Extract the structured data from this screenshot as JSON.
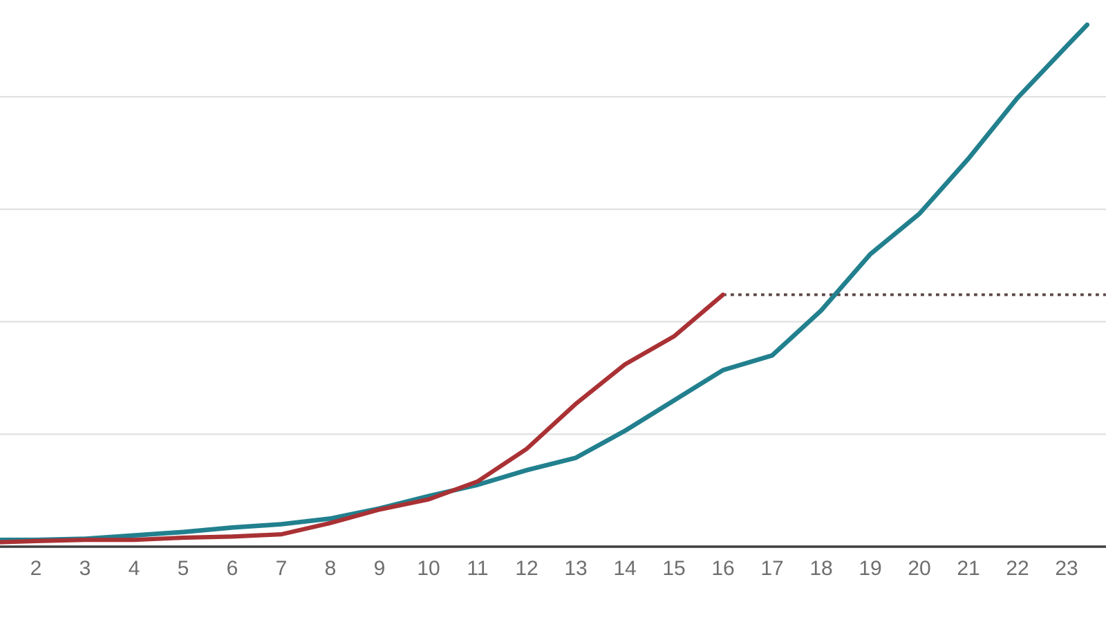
{
  "chart": {
    "background_color": "#ffffff",
    "axis_line_color": "#3f3f3f",
    "gridline_color": "#e1e1e1",
    "tick_label_color": "#6e6e6e",
    "series_teal_color": "#22808e",
    "series_red_color": "#a93134",
    "reference_line_color": "#5a4646"
  },
  "chart_data": {
    "type": "line",
    "title": "",
    "xlabel": "",
    "ylabel": "",
    "legend": "none",
    "x_tick_labels": [
      "2",
      "3",
      "4",
      "5",
      "6",
      "7",
      "8",
      "9",
      "10",
      "11",
      "12",
      "13",
      "14",
      "15",
      "16",
      "17",
      "18",
      "19",
      "20",
      "21",
      "22",
      "23"
    ],
    "y_tick_labels_visible": false,
    "gridline_values": [
      1,
      2,
      3,
      4
    ],
    "ylim": [
      0,
      4.8
    ],
    "xlim_visible": [
      1.27,
      23.8
    ],
    "y_units_note": "unlabeled y-axis; values expressed in gridline units",
    "series": [
      {
        "name": "series_teal",
        "color": "#22808e",
        "x_visible_start": 1.27,
        "start_value": 0.06,
        "x": [
          2,
          3,
          4,
          5,
          6,
          7,
          8,
          9,
          10,
          11,
          12,
          13,
          14,
          15,
          16,
          17,
          18,
          19,
          20,
          21,
          22,
          23
        ],
        "values": [
          0.06,
          0.07,
          0.1,
          0.13,
          0.17,
          0.2,
          0.25,
          0.34,
          0.45,
          0.55,
          0.68,
          0.79,
          1.03,
          1.3,
          1.57,
          1.7,
          2.1,
          2.6,
          2.96,
          3.45,
          3.99,
          4.45
        ],
        "x_visible_end": 23.42,
        "end_value": 4.64
      },
      {
        "name": "series_red",
        "color": "#a93134",
        "x_visible_start": 1.27,
        "start_value": 0.04,
        "x": [
          2,
          3,
          4,
          5,
          6,
          7,
          8,
          9,
          10,
          11,
          12,
          13,
          14,
          15,
          16
        ],
        "values": [
          0.05,
          0.06,
          0.06,
          0.08,
          0.09,
          0.11,
          0.21,
          0.33,
          0.42,
          0.58,
          0.87,
          1.27,
          1.62,
          1.87,
          2.24
        ],
        "x_visible_end": 16,
        "end_value": 2.24
      }
    ],
    "reference_line": {
      "name": "red_final_value_dotted",
      "style": "dotted",
      "color": "#5a4646",
      "value": 2.24,
      "x_start": 16,
      "x_end": 23.8
    }
  }
}
